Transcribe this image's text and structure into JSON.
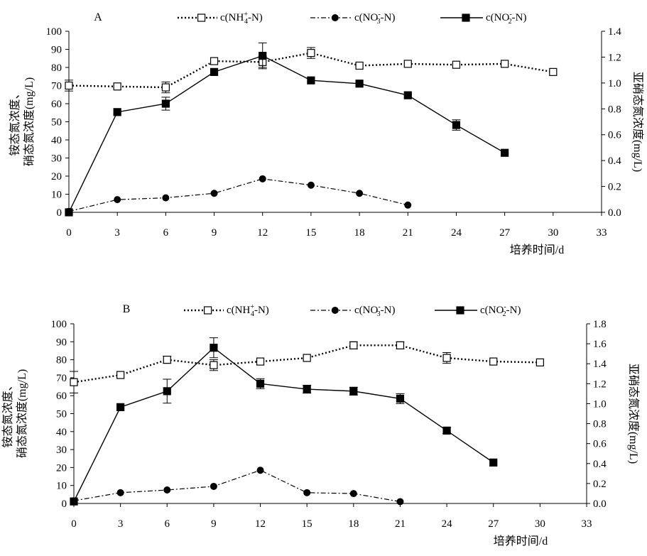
{
  "chart_data": [
    {
      "type": "line",
      "panel_label": "A",
      "xlabel": "培养时间/d",
      "ylabel_left": [
        "铵态氮浓度、",
        "硝态氮浓度(mg/L)"
      ],
      "ylabel_right": "亚硝态氮浓度(mg/L)",
      "xlim": [
        0,
        33
      ],
      "x_ticks": [
        0,
        3,
        6,
        9,
        12,
        15,
        18,
        21,
        24,
        27,
        30,
        33
      ],
      "ylim_left": [
        0,
        100
      ],
      "y_ticks_left": [
        0,
        10,
        20,
        30,
        40,
        50,
        60,
        70,
        80,
        90,
        100
      ],
      "ylim_right": [
        0,
        1.4
      ],
      "y_ticks_right": [
        "0.0",
        "0.2",
        "0.4",
        "0.6",
        "0.8",
        "1.0",
        "1.2",
        "1.4"
      ],
      "series": [
        {
          "name": "c(NH4+-N)",
          "legend_parts": {
            "pre": "c(NH",
            "sub": "4",
            "sup": "+",
            "post": "-N)"
          },
          "marker": "open-square",
          "line": "dotted",
          "axis": "left",
          "points": [
            {
              "x": 0,
              "y": 70,
              "err": 3
            },
            {
              "x": 3,
              "y": 69.5,
              "err": 0
            },
            {
              "x": 6,
              "y": 69,
              "err": 3
            },
            {
              "x": 9,
              "y": 83.5,
              "err": 0
            },
            {
              "x": 12,
              "y": 83,
              "err": 3
            },
            {
              "x": 15,
              "y": 88,
              "err": 3
            },
            {
              "x": 18,
              "y": 81,
              "err": 0
            },
            {
              "x": 21,
              "y": 82,
              "err": 0
            },
            {
              "x": 24,
              "y": 81.5,
              "err": 0
            },
            {
              "x": 27,
              "y": 82,
              "err": 0
            },
            {
              "x": 30,
              "y": 77.5,
              "err": 0
            }
          ]
        },
        {
          "name": "c(NO3--N)",
          "legend_parts": {
            "pre": "c(NO",
            "sub": "3",
            "sup": "-",
            "post": "-N)"
          },
          "marker": "filled-circle",
          "line": "dash-dot",
          "axis": "left",
          "points": [
            {
              "x": 0,
              "y": 0.5,
              "err": 0
            },
            {
              "x": 3,
              "y": 7,
              "err": 0
            },
            {
              "x": 6,
              "y": 8,
              "err": 0
            },
            {
              "x": 9,
              "y": 10.5,
              "err": 0
            },
            {
              "x": 12,
              "y": 18.5,
              "err": 0
            },
            {
              "x": 15,
              "y": 15,
              "err": 0
            },
            {
              "x": 18,
              "y": 10.5,
              "err": 0
            },
            {
              "x": 21,
              "y": 4,
              "err": 0
            }
          ]
        },
        {
          "name": "c(NO2--N)",
          "legend_parts": {
            "pre": "c(NO",
            "sub": "2",
            "sup": "-",
            "post": "-N)"
          },
          "marker": "filled-square",
          "line": "solid",
          "axis": "right",
          "points": [
            {
              "x": 0,
              "y": 0.0,
              "err": 0
            },
            {
              "x": 3,
              "y": 0.775,
              "err": 0
            },
            {
              "x": 6,
              "y": 0.84,
              "err": 0.05
            },
            {
              "x": 9,
              "y": 1.085,
              "err": 0
            },
            {
              "x": 12,
              "y": 1.21,
              "err": 0.1
            },
            {
              "x": 15,
              "y": 1.02,
              "err": 0
            },
            {
              "x": 18,
              "y": 0.995,
              "err": 0
            },
            {
              "x": 21,
              "y": 0.905,
              "err": 0
            },
            {
              "x": 24,
              "y": 0.675,
              "err": 0.04
            },
            {
              "x": 27,
              "y": 0.46,
              "err": 0
            }
          ]
        }
      ]
    },
    {
      "type": "line",
      "panel_label": "B",
      "xlabel": "培养时间/d",
      "ylabel_left": [
        "铵态氮浓度、",
        "硝态氮浓度(mg/L)"
      ],
      "ylabel_right": "亚硝态氮浓度(mg/L)",
      "xlim": [
        0,
        33
      ],
      "x_ticks": [
        0,
        3,
        6,
        9,
        12,
        15,
        18,
        21,
        24,
        27,
        30,
        33
      ],
      "ylim_left": [
        0,
        100
      ],
      "y_ticks_left": [
        0,
        10,
        20,
        30,
        40,
        50,
        60,
        70,
        80,
        90,
        100
      ],
      "ylim_right": [
        0,
        1.8
      ],
      "y_ticks_right": [
        "0.0",
        "0.2",
        "0.4",
        "0.6",
        "0.8",
        "1.0",
        "1.2",
        "1.4",
        "1.6",
        "1.8"
      ],
      "series": [
        {
          "name": "c(NH4+-N)",
          "legend_parts": {
            "pre": "c(NH",
            "sub": "4",
            "sup": "+",
            "post": "-N)"
          },
          "marker": "open-square",
          "line": "dotted",
          "axis": "left",
          "points": [
            {
              "x": 0,
              "y": 67.5,
              "err": 6
            },
            {
              "x": 3,
              "y": 71.5,
              "err": 0
            },
            {
              "x": 6,
              "y": 80,
              "err": 2
            },
            {
              "x": 9,
              "y": 77,
              "err": 3
            },
            {
              "x": 12,
              "y": 79,
              "err": 0
            },
            {
              "x": 15,
              "y": 81,
              "err": 0
            },
            {
              "x": 18,
              "y": 88,
              "err": 2
            },
            {
              "x": 21,
              "y": 88,
              "err": 2
            },
            {
              "x": 24,
              "y": 81,
              "err": 3
            },
            {
              "x": 27,
              "y": 79,
              "err": 0
            },
            {
              "x": 30,
              "y": 78.5,
              "err": 0
            }
          ]
        },
        {
          "name": "c(NO3--N)",
          "legend_parts": {
            "pre": "c(NO",
            "sub": "3",
            "sup": "-",
            "post": "-N)"
          },
          "marker": "filled-circle",
          "line": "dash-dot",
          "axis": "left",
          "points": [
            {
              "x": 0,
              "y": 1.5,
              "err": 0
            },
            {
              "x": 3,
              "y": 6,
              "err": 0
            },
            {
              "x": 6,
              "y": 7.5,
              "err": 0
            },
            {
              "x": 9,
              "y": 9.5,
              "err": 0
            },
            {
              "x": 12,
              "y": 18.5,
              "err": 0
            },
            {
              "x": 15,
              "y": 6,
              "err": 0
            },
            {
              "x": 18,
              "y": 5.5,
              "err": 0
            },
            {
              "x": 21,
              "y": 1,
              "err": 0
            }
          ]
        },
        {
          "name": "c(NO2--N)",
          "legend_parts": {
            "pre": "c(NO",
            "sub": "2",
            "sup": "-",
            "post": "-N)"
          },
          "marker": "filled-square",
          "line": "solid",
          "axis": "right",
          "points": [
            {
              "x": 0,
              "y": 0.02,
              "err": 0
            },
            {
              "x": 3,
              "y": 0.965,
              "err": 0
            },
            {
              "x": 6,
              "y": 1.125,
              "err": 0.12
            },
            {
              "x": 9,
              "y": 1.56,
              "err": 0.1
            },
            {
              "x": 12,
              "y": 1.2,
              "err": 0.05
            },
            {
              "x": 15,
              "y": 1.145,
              "err": 0.04
            },
            {
              "x": 18,
              "y": 1.125,
              "err": 0.04
            },
            {
              "x": 21,
              "y": 1.05,
              "err": 0.05
            },
            {
              "x": 24,
              "y": 0.73,
              "err": 0.03
            },
            {
              "x": 27,
              "y": 0.41,
              "err": 0
            }
          ]
        }
      ]
    }
  ]
}
